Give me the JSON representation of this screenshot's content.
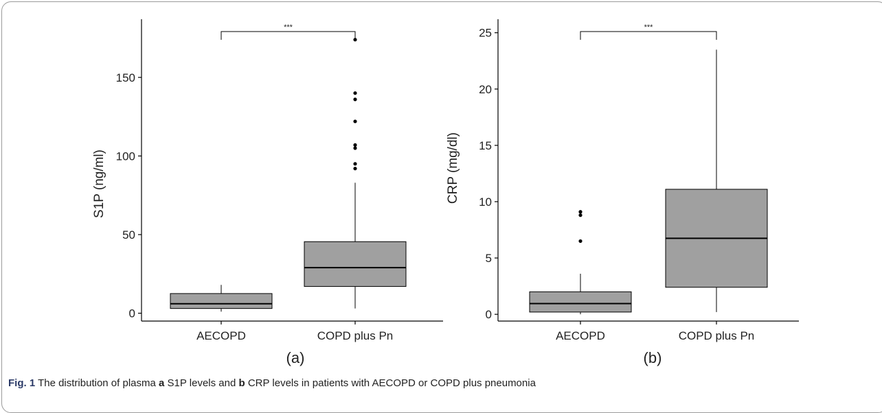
{
  "chart_data": [
    {
      "type": "box",
      "panel_label": "(a)",
      "title": "",
      "xlabel": "",
      "ylabel": "S1P (ng/ml)",
      "ylim": [
        -5,
        187
      ],
      "yticks": [
        0,
        50,
        100,
        150
      ],
      "categories": [
        "AECOPD",
        "COPD plus Pn"
      ],
      "boxes": [
        {
          "q1": 3,
          "median": 6,
          "q3": 12.5,
          "whisker_low": 1,
          "whisker_high": 18,
          "outliers": []
        },
        {
          "q1": 17,
          "median": 29,
          "q3": 45.5,
          "whisker_low": 3,
          "whisker_high": 83,
          "outliers": [
            92,
            95,
            105,
            107,
            122,
            136,
            140,
            174
          ]
        }
      ],
      "significance": {
        "from": 0,
        "to": 1,
        "label": "***"
      }
    },
    {
      "type": "box",
      "panel_label": "(b)",
      "title": "",
      "xlabel": "",
      "ylabel": "CRP (mg/dl)",
      "ylim": [
        -0.6,
        26.2
      ],
      "yticks": [
        0,
        5,
        10,
        15,
        20,
        25
      ],
      "categories": [
        "AECOPD",
        "COPD plus Pn"
      ],
      "boxes": [
        {
          "q1": 0.2,
          "median": 0.95,
          "q3": 2.0,
          "whisker_low": 0.0,
          "whisker_high": 3.6,
          "outliers": [
            6.5,
            8.8,
            9.1
          ]
        },
        {
          "q1": 2.4,
          "median": 6.75,
          "q3": 11.1,
          "whisker_low": 0.2,
          "whisker_high": 23.5,
          "outliers": []
        }
      ],
      "significance": {
        "from": 0,
        "to": 1,
        "label": "***"
      }
    }
  ],
  "caption": {
    "fig_label": "Fig. 1",
    "text_1": "The distribution of plasma",
    "bold_a": "a",
    "text_2": "S1P levels and",
    "bold_b": "b",
    "text_3": "CRP levels in patients with AECOPD or COPD plus pneumonia"
  },
  "colors": {
    "box_fill": "#a0a0a0",
    "stroke": "#000000"
  }
}
